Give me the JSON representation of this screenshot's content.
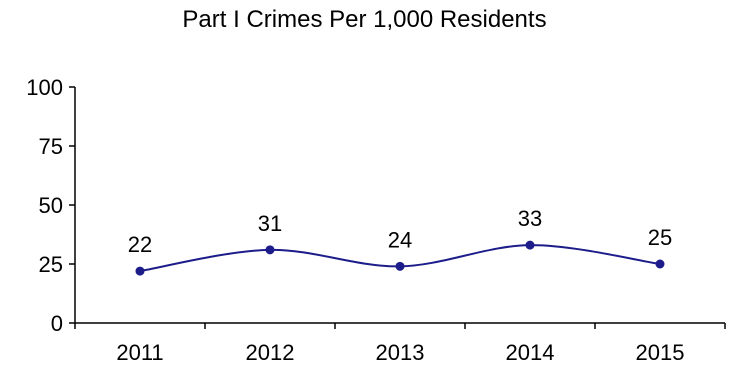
{
  "chart_data": {
    "type": "line",
    "title": "Part I Crimes Per 1,000 Residents",
    "xlabel": "",
    "ylabel": "",
    "categories": [
      "2011",
      "2012",
      "2013",
      "2014",
      "2015"
    ],
    "series": [
      {
        "values": [
          22,
          31,
          24,
          33,
          25
        ]
      }
    ],
    "data_labels": [
      "22",
      "31",
      "24",
      "33",
      "25"
    ],
    "yticks": [
      0,
      25,
      50,
      75,
      100
    ],
    "ytick_labels": [
      "0",
      "25",
      "50",
      "75",
      "100"
    ],
    "ylim": [
      0,
      100
    ],
    "grid": false,
    "legend": "none",
    "smooth": true,
    "line_color": "#1c1c8a",
    "marker_color": "#1c1c8a",
    "axis_color": "#000000"
  }
}
